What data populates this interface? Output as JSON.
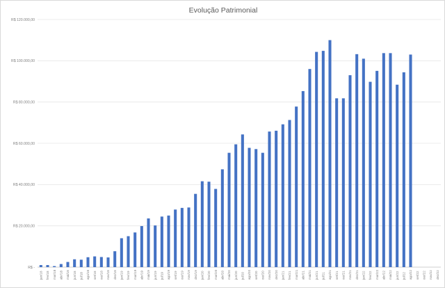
{
  "chart_data": {
    "type": "bar",
    "title": "Evolução Patrimonial",
    "xlabel": "",
    "ylabel": "",
    "ylim": [
      0,
      120000
    ],
    "ytick_values": [
      0,
      20000,
      40000,
      60000,
      80000,
      100000,
      120000
    ],
    "ytick_labels": [
      "R$ -",
      "R$ 20.000,00",
      "R$ 40.000,00",
      "R$ 60.000,00",
      "R$ 80.000,00",
      "R$ 100.000,00",
      "R$ 120.000,00"
    ],
    "grid": true,
    "legend": "none",
    "bar_color": "#4472c4",
    "categories": [
      "jan/18",
      "fev/18",
      "mar/18",
      "abr/18",
      "mai/18",
      "jun/18",
      "jul/18",
      "ago/18",
      "set/18",
      "out/18",
      "nov/18",
      "dez/18",
      "jan/19",
      "fev/19",
      "mar/19",
      "abr/19",
      "mai/19",
      "jun/19",
      "jul/19",
      "ago/19",
      "set/19",
      "out/19",
      "nov/19",
      "dez/19",
      "jan/20",
      "fev/20",
      "mar/20",
      "abr/20",
      "mai/20",
      "jun/20",
      "jul/20",
      "ago/20",
      "set/20",
      "out/20",
      "nov/20",
      "dez/20",
      "jan/21",
      "fev/21",
      "mar/21",
      "abr/21",
      "mai/21",
      "jun/21",
      "jul/21",
      "ago/21",
      "set/21",
      "out/21",
      "nov/21",
      "dez/21",
      "jan/22",
      "fev/22",
      "mar/22",
      "abr/22",
      "mai/22",
      "jun/22",
      "jul/22",
      "ago/22",
      "set/22",
      "out/22",
      "nov/22",
      "dez/22"
    ],
    "values": [
      1000,
      1000,
      500,
      1500,
      2500,
      3800,
      3600,
      4800,
      5200,
      4900,
      4700,
      7700,
      14000,
      15000,
      16800,
      19900,
      23600,
      20200,
      24500,
      25000,
      27900,
      28700,
      28900,
      35500,
      41600,
      41400,
      37900,
      47400,
      55400,
      59500,
      64300,
      57800,
      57200,
      55400,
      65700,
      66100,
      69200,
      71300,
      77800,
      85300,
      96000,
      104300,
      104800,
      110000,
      81800,
      81800,
      93000,
      103200,
      101000,
      89800,
      95100,
      103700,
      103700,
      88400,
      94400,
      103000,
      0,
      0,
      0,
      0
    ]
  }
}
